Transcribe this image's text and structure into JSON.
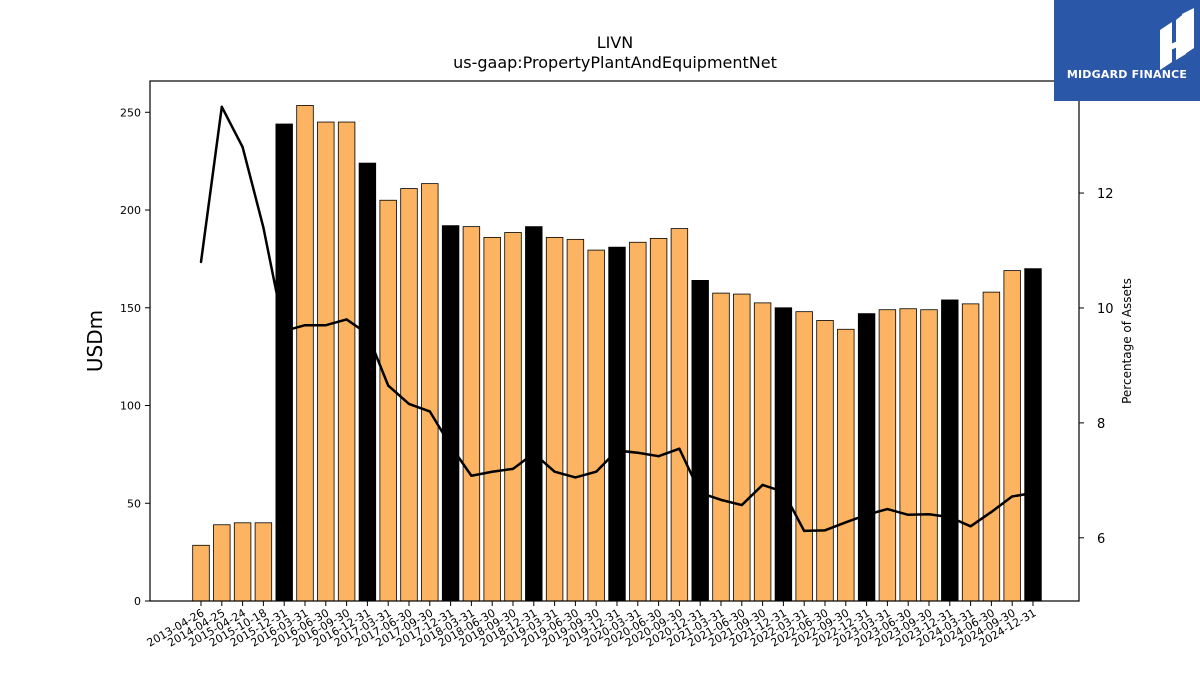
{
  "brand": {
    "name": "MIDGARD FINANCE",
    "bg_color": "#2b57a8"
  },
  "colors": {
    "bar_regular": "#fdb462",
    "bar_annual": "#000000",
    "line": "#000000"
  },
  "chart_data": {
    "type": "bar",
    "title": "LIVN",
    "subtitle": "us-gaap:PropertyPlantAndEquipmentNet",
    "ylabel": "USDm",
    "y2label": "Percentage of Assets",
    "ylim": [
      0,
      266
    ],
    "y2lim": [
      4.9,
      13.95
    ],
    "yticks": [
      0,
      50,
      100,
      150,
      200,
      250
    ],
    "y2ticks": [
      6,
      8,
      10,
      12
    ],
    "grid": false,
    "categories": [
      "2013-04-26",
      "2014-04-25",
      "2015-04-24",
      "2015-10-18",
      "2015-12-31",
      "2016-03-31",
      "2016-06-30",
      "2016-09-30",
      "2016-12-31",
      "2017-03-31",
      "2017-06-30",
      "2017-09-30",
      "2017-12-31",
      "2018-03-31",
      "2018-06-30",
      "2018-09-30",
      "2018-12-31",
      "2019-03-31",
      "2019-06-30",
      "2019-09-30",
      "2019-12-31",
      "2020-03-31",
      "2020-06-30",
      "2020-09-30",
      "2020-12-31",
      "2021-03-31",
      "2021-06-30",
      "2021-09-30",
      "2021-12-31",
      "2022-03-31",
      "2022-06-30",
      "2022-09-30",
      "2022-12-31",
      "2023-03-31",
      "2023-06-30",
      "2023-09-30",
      "2023-12-31",
      "2024-03-31",
      "2024-06-30",
      "2024-09-30",
      "2024-12-31"
    ],
    "series": [
      {
        "kind": "bar",
        "values": [
          28.5,
          39,
          40,
          40,
          244,
          253.5,
          245,
          245,
          224,
          205,
          211,
          213.5,
          192,
          191.5,
          186,
          188.5,
          191.5,
          186,
          185,
          179.5,
          181,
          183.5,
          185.5,
          190.5,
          164,
          157.5,
          157,
          152.5,
          150,
          148,
          143.5,
          139,
          147,
          149,
          149.5,
          149,
          154,
          152,
          158,
          169,
          170
        ],
        "annual": [
          false,
          false,
          false,
          false,
          true,
          false,
          false,
          false,
          true,
          false,
          false,
          false,
          true,
          false,
          false,
          false,
          true,
          false,
          false,
          false,
          true,
          false,
          false,
          false,
          true,
          false,
          false,
          false,
          true,
          false,
          false,
          false,
          true,
          false,
          false,
          false,
          true,
          false,
          false,
          false,
          true
        ]
      },
      {
        "kind": "line",
        "axis": "right",
        "values": [
          10.8,
          13.5,
          12.8,
          11.4,
          9.6,
          9.7,
          9.7,
          9.8,
          9.55,
          8.65,
          8.33,
          8.2,
          7.6,
          7.08,
          7.15,
          7.2,
          7.47,
          7.15,
          7.05,
          7.15,
          7.52,
          7.48,
          7.42,
          7.55,
          6.78,
          6.66,
          6.57,
          6.92,
          6.8,
          6.12,
          6.13,
          6.27,
          6.4,
          6.5,
          6.4,
          6.41,
          6.36,
          6.2,
          6.45,
          6.72,
          6.78
        ]
      }
    ]
  }
}
